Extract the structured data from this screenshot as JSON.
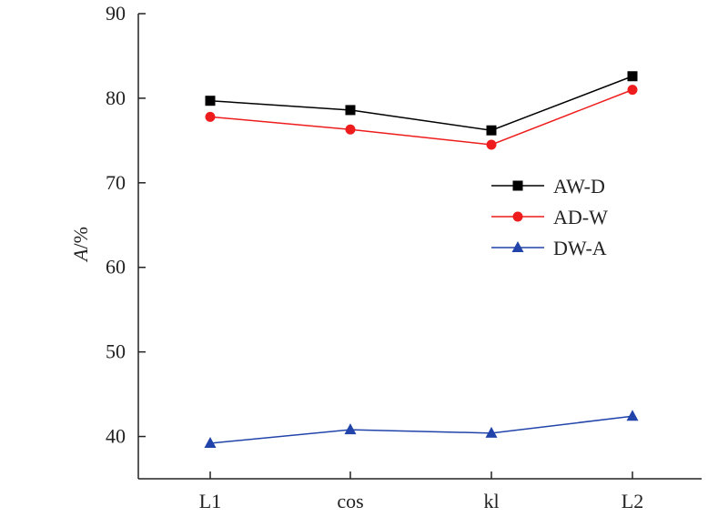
{
  "chart_data": {
    "type": "line",
    "categories": [
      "L1",
      "cos",
      "kl",
      "L2"
    ],
    "series": [
      {
        "name": "AW-D",
        "values": [
          79.7,
          78.6,
          76.2,
          82.6
        ],
        "color": "#000000",
        "marker": "square"
      },
      {
        "name": "AD-W",
        "values": [
          77.8,
          76.3,
          74.5,
          81.0
        ],
        "color": "#ee1c1c",
        "marker": "circle"
      },
      {
        "name": "DW-A",
        "values": [
          39.2,
          40.8,
          40.4,
          42.4
        ],
        "color": "#2244aa",
        "marker": "triangle"
      }
    ],
    "ylabel_italic": "A",
    "ylabel_rest": "/%",
    "ylim": [
      35,
      90
    ],
    "yticks": [
      40,
      50,
      60,
      70,
      80,
      90
    ],
    "grid": false,
    "legend_position": "right"
  }
}
